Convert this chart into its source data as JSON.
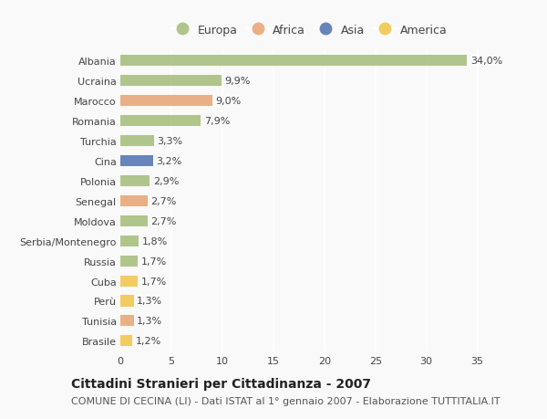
{
  "countries": [
    "Albania",
    "Ucraina",
    "Marocco",
    "Romania",
    "Turchia",
    "Cina",
    "Polonia",
    "Senegal",
    "Moldova",
    "Serbia/Montenegro",
    "Russia",
    "Cuba",
    "Perù",
    "Tunisia",
    "Brasile"
  ],
  "values": [
    34.0,
    9.9,
    9.0,
    7.9,
    3.3,
    3.2,
    2.9,
    2.7,
    2.7,
    1.8,
    1.7,
    1.7,
    1.3,
    1.3,
    1.2
  ],
  "continents": [
    "Europa",
    "Europa",
    "Africa",
    "Europa",
    "Europa",
    "Asia",
    "Europa",
    "Africa",
    "Europa",
    "Europa",
    "Europa",
    "America",
    "America",
    "Africa",
    "America"
  ],
  "continent_colors": {
    "Europa": "#a8c080",
    "Africa": "#e8a878",
    "Asia": "#5878b0",
    "America": "#f0c850"
  },
  "legend_order": [
    "Europa",
    "Africa",
    "Asia",
    "America"
  ],
  "title": "Cittadini Stranieri per Cittadinanza - 2007",
  "subtitle": "COMUNE DI CECINA (LI) - Dati ISTAT al 1° gennaio 2007 - Elaborazione TUTTITALIA.IT",
  "xlim": [
    0,
    37
  ],
  "xticks": [
    0,
    5,
    10,
    15,
    20,
    25,
    30,
    35
  ],
  "background_color": "#f9f9f9",
  "bar_height": 0.55,
  "title_fontsize": 10,
  "subtitle_fontsize": 8,
  "label_fontsize": 8,
  "tick_fontsize": 8,
  "legend_fontsize": 9
}
